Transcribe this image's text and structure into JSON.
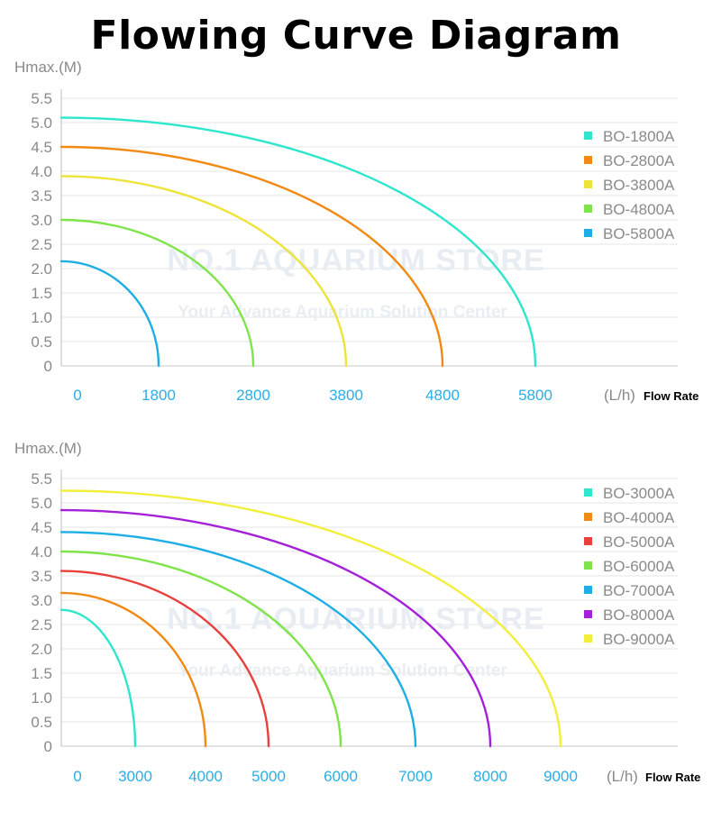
{
  "title": "Flowing Curve Diagram",
  "watermark": {
    "line1": "NO.1 AQUARIUM STORE",
    "line2": "Your Advance Aquarium Solution Center"
  },
  "chart_data": [
    {
      "type": "line",
      "ylabel": "Hmax.(M)",
      "xunit": "(L/h)",
      "xlabel": "Flow Rate",
      "ylim": [
        0,
        5.5
      ],
      "yticks": [
        "0",
        "0.5",
        "1.0",
        "1.5",
        "2.0",
        "2.5",
        "3.0",
        "3.5",
        "4.0",
        "4.5",
        "5.0",
        "5.5"
      ],
      "xticks": [
        "0",
        "1800",
        "2800",
        "3800",
        "4800",
        "5800"
      ],
      "grid": true,
      "legend_position": "top-right",
      "series": [
        {
          "name": "BO-1800A",
          "color": "#2ee6cc",
          "max_head": 5.1,
          "max_flow": "5800"
        },
        {
          "name": "BO-2800A",
          "color": "#f08a12",
          "max_head": 4.5,
          "max_flow": "4800"
        },
        {
          "name": "BO-3800A",
          "color": "#ede43a",
          "max_head": 3.9,
          "max_flow": "3800"
        },
        {
          "name": "BO-4800A",
          "color": "#7fe34a",
          "max_head": 3.0,
          "max_flow": "2800"
        },
        {
          "name": "BO-5800A",
          "color": "#1eaee6",
          "max_head": 2.15,
          "max_flow": "1800"
        }
      ]
    },
    {
      "type": "line",
      "ylabel": "Hmax.(M)",
      "xunit": "(L/h)",
      "xlabel": "Flow Rate",
      "ylim": [
        0,
        5.5
      ],
      "yticks": [
        "0",
        "0.5",
        "1.0",
        "1.5",
        "2.0",
        "2.5",
        "3.0",
        "3.5",
        "4.0",
        "4.5",
        "5.0",
        "5.5"
      ],
      "xticks": [
        "0",
        "3000",
        "4000",
        "5000",
        "6000",
        "7000",
        "8000",
        "9000"
      ],
      "grid": true,
      "legend_position": "top-right",
      "series": [
        {
          "name": "BO-3000A",
          "color": "#2ee6cc",
          "max_head": 2.8,
          "max_flow": "3000"
        },
        {
          "name": "BO-4000A",
          "color": "#f08a12",
          "max_head": 3.15,
          "max_flow": "4000"
        },
        {
          "name": "BO-5000A",
          "color": "#e8403c",
          "max_head": 3.6,
          "max_flow": "5000"
        },
        {
          "name": "BO-6000A",
          "color": "#7fe34a",
          "max_head": 4.0,
          "max_flow": "6000"
        },
        {
          "name": "BO-7000A",
          "color": "#1eaee6",
          "max_head": 4.4,
          "max_flow": "7000"
        },
        {
          "name": "BO-8000A",
          "color": "#a421d9",
          "max_head": 4.85,
          "max_flow": "8000"
        },
        {
          "name": "BO-9000A",
          "color": "#f1ef3c",
          "max_head": 5.25,
          "max_flow": "9000"
        }
      ]
    }
  ]
}
